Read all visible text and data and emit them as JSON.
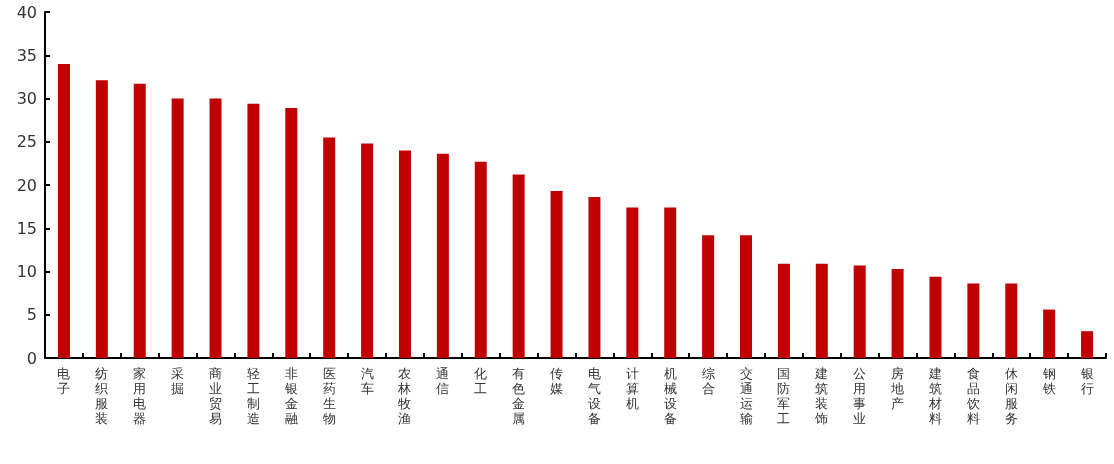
{
  "chart_data": {
    "type": "bar",
    "categories": [
      "电子",
      "纺织服装",
      "家用电器",
      "采掘",
      "商业贸易",
      "轻工制造",
      "非银金融",
      "医药生物",
      "汽车",
      "农林牧渔",
      "通信",
      "化工",
      "有色金属",
      "传媒",
      "电气设备",
      "计算机",
      "机械设备",
      "综合",
      "交通运输",
      "国防军工",
      "建筑装饰",
      "公用事业",
      "房地产",
      "建筑材料",
      "食品饮料",
      "休闲服务",
      "钢铁",
      "银行"
    ],
    "values": [
      34.0,
      32.1,
      31.7,
      30.0,
      30.0,
      29.4,
      28.9,
      25.5,
      24.8,
      24.0,
      23.6,
      22.7,
      21.2,
      19.3,
      18.6,
      17.4,
      17.4,
      14.2,
      14.2,
      10.9,
      10.9,
      10.7,
      10.3,
      9.4,
      8.6,
      8.6,
      5.6,
      3.1
    ],
    "color": "#c00000",
    "ylim": [
      0,
      40
    ],
    "yticks": [
      0,
      5,
      10,
      15,
      20,
      25,
      30,
      35,
      40
    ],
    "grid": false
  }
}
